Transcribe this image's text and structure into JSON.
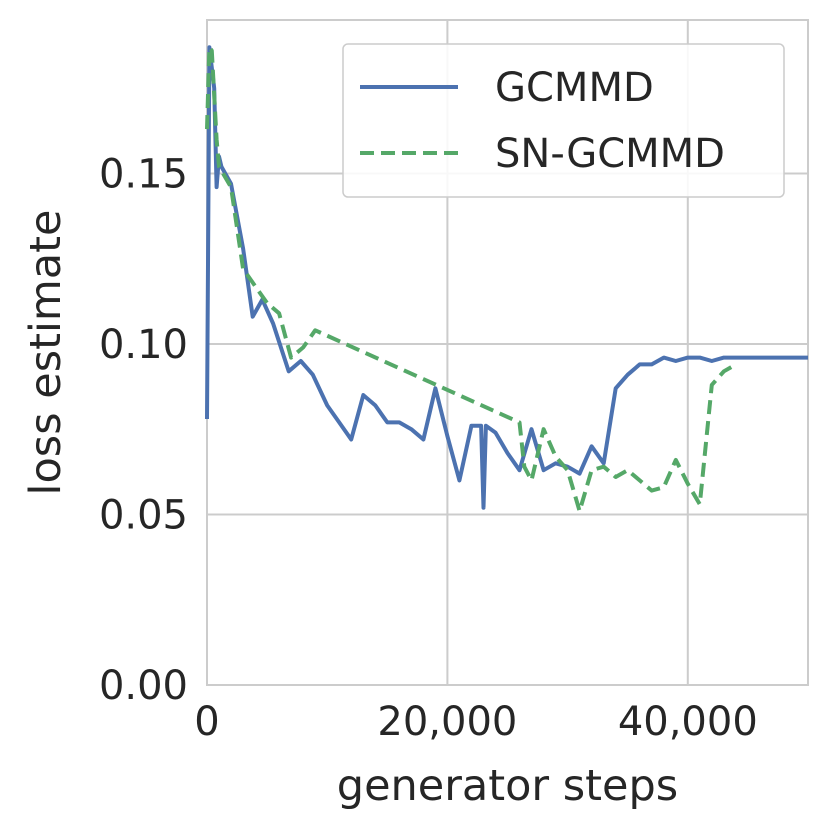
{
  "chart_data": {
    "type": "line",
    "xlabel": "generator steps",
    "ylabel": "loss estimate",
    "xlim": [
      0,
      50000
    ],
    "ylim": [
      0,
      0.195
    ],
    "xticks": [
      0,
      20000,
      40000
    ],
    "xtick_labels": [
      "0",
      "20,000",
      "40,000"
    ],
    "yticks": [
      0,
      0.05,
      0.1,
      0.15
    ],
    "ytick_labels": [
      "0.00",
      "0.05",
      "0.10",
      "0.15"
    ],
    "grid": true,
    "legend_position": "top-right",
    "series": [
      {
        "name": "GCMMD",
        "color": "#4c72b0",
        "style": "solid",
        "x": [
          0,
          200,
          400,
          600,
          800,
          1000,
          1200,
          2000,
          3000,
          3800,
          4600,
          5500,
          6800,
          7800,
          8800,
          10000,
          11000,
          12000,
          13000,
          14000,
          15000,
          16000,
          17000,
          18000,
          19000,
          20000,
          21000,
          22000,
          22800,
          23000,
          23200,
          24000,
          25000,
          26000,
          27000,
          28000,
          29000,
          30000,
          31000,
          32000,
          33000,
          34000,
          35000,
          36000,
          37000,
          38000,
          39000,
          40000,
          41000,
          42000,
          43000,
          44000,
          45000,
          46000,
          47000,
          48000,
          49000,
          50000
        ],
        "y": [
          0.078,
          0.187,
          0.181,
          0.175,
          0.146,
          0.155,
          0.152,
          0.147,
          0.128,
          0.108,
          0.113,
          0.106,
          0.092,
          0.095,
          0.091,
          0.082,
          0.077,
          0.072,
          0.085,
          0.082,
          0.077,
          0.077,
          0.075,
          0.072,
          0.087,
          0.073,
          0.06,
          0.076,
          0.076,
          0.052,
          0.076,
          0.074,
          0.068,
          0.063,
          0.075,
          0.063,
          0.065,
          0.064,
          0.062,
          0.07,
          0.065,
          0.087,
          0.091,
          0.094,
          0.094,
          0.096,
          0.095,
          0.096,
          0.096,
          0.095,
          0.096,
          0.096,
          0.096,
          0.096,
          0.096,
          0.096,
          0.096,
          0.096
        ]
      },
      {
        "name": "SN-GCMMD",
        "color": "#55a868",
        "style": "dashed",
        "x": [
          0,
          200,
          400,
          800,
          1000,
          2000,
          3000,
          4000,
          5000,
          6000,
          7000,
          8000,
          9000,
          26000,
          26400,
          27000,
          28000,
          29000,
          30000,
          31000,
          32000,
          33000,
          34000,
          35000,
          36000,
          37000,
          38000,
          39000,
          40000,
          41000,
          42000,
          43000,
          44000
        ],
        "y": [
          0.163,
          0.187,
          0.186,
          0.16,
          0.152,
          0.146,
          0.122,
          0.117,
          0.112,
          0.109,
          0.096,
          0.099,
          0.104,
          0.077,
          0.064,
          0.06,
          0.075,
          0.067,
          0.063,
          0.051,
          0.063,
          0.064,
          0.061,
          0.063,
          0.06,
          0.057,
          0.058,
          0.066,
          0.059,
          0.053,
          0.088,
          0.092,
          0.094
        ]
      }
    ]
  }
}
